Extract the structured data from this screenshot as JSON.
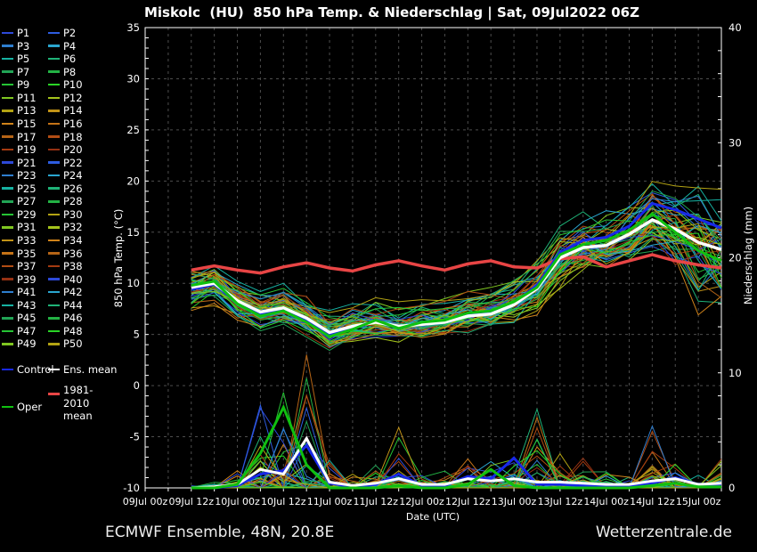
{
  "title": "Miskolc  (HU)  850 hPa Temp. & Niederschlag | Sat, 09Jul2022 06Z",
  "footer": {
    "left": "ECMWF Ensemble, 48N, 20.8E",
    "right": "Wetterzentrale.de"
  },
  "chart": {
    "y_left": {
      "title": "850 hPa Temp. (°C)",
      "ticks": [
        35,
        30,
        25,
        20,
        15,
        10,
        5,
        0,
        -5,
        -10
      ],
      "min": -10,
      "max": 35
    },
    "y_right": {
      "title": "Niederschlag (mm)",
      "ticks": [
        40,
        30,
        20,
        10,
        0
      ],
      "min": 0,
      "max": 40
    },
    "x": {
      "title": "Date (UTC)",
      "tick_labels": [
        "09Jul 00z",
        "09Jul 12z",
        "10Jul 00z",
        "10Jul 12z",
        "11Jul 00z",
        "11Jul 12z",
        "12Jul 00z",
        "12Jul 12z",
        "13Jul 00z",
        "13Jul 12z",
        "14Jul 00z",
        "14Jul 12z",
        "15Jul 00z"
      ]
    }
  },
  "legend": {
    "members": [
      {
        "label": "P1",
        "color": "#2d49d8"
      },
      {
        "label": "P2",
        "color": "#2d5ce0"
      },
      {
        "label": "P3",
        "color": "#2e7ecf"
      },
      {
        "label": "P4",
        "color": "#2aa6cf"
      },
      {
        "label": "P5",
        "color": "#16b2a2"
      },
      {
        "label": "P6",
        "color": "#1fb378"
      },
      {
        "label": "P7",
        "color": "#21a455"
      },
      {
        "label": "P8",
        "color": "#23b244"
      },
      {
        "label": "P9",
        "color": "#25c334"
      },
      {
        "label": "P10",
        "color": "#2ad426"
      },
      {
        "label": "P11",
        "color": "#7fc621"
      },
      {
        "label": "P12",
        "color": "#a4c31c"
      },
      {
        "label": "P13",
        "color": "#b3a313"
      },
      {
        "label": "P14",
        "color": "#c29317"
      },
      {
        "label": "P15",
        "color": "#d0831a"
      },
      {
        "label": "P16",
        "color": "#c57317"
      },
      {
        "label": "P17",
        "color": "#b56416"
      },
      {
        "label": "P18",
        "color": "#b24d14"
      },
      {
        "label": "P19",
        "color": "#a53b11"
      },
      {
        "label": "P20",
        "color": "#953113"
      },
      {
        "label": "P21",
        "color": "#2d49d8"
      },
      {
        "label": "P22",
        "color": "#2d5ce0"
      },
      {
        "label": "P23",
        "color": "#2e7ecf"
      },
      {
        "label": "P24",
        "color": "#2aa6cf"
      },
      {
        "label": "P25",
        "color": "#16b2a2"
      },
      {
        "label": "P26",
        "color": "#1fb378"
      },
      {
        "label": "P27",
        "color": "#21a455"
      },
      {
        "label": "P28",
        "color": "#23b244"
      },
      {
        "label": "P29",
        "color": "#25c334"
      },
      {
        "label": "P30",
        "color": "#b3a313"
      },
      {
        "label": "P31",
        "color": "#7fc621"
      },
      {
        "label": "P32",
        "color": "#a4c31c"
      },
      {
        "label": "P33",
        "color": "#c29317"
      },
      {
        "label": "P34",
        "color": "#d0831a"
      },
      {
        "label": "P35",
        "color": "#c57317"
      },
      {
        "label": "P36",
        "color": "#b56416"
      },
      {
        "label": "P37",
        "color": "#b24d14"
      },
      {
        "label": "P38",
        "color": "#a53b11"
      },
      {
        "label": "P39",
        "color": "#953113"
      },
      {
        "label": "P40",
        "color": "#2d49d8"
      },
      {
        "label": "P41",
        "color": "#2e7ecf"
      },
      {
        "label": "P42",
        "color": "#2aa6cf"
      },
      {
        "label": "P43",
        "color": "#16b2a2"
      },
      {
        "label": "P44",
        "color": "#1fb378"
      },
      {
        "label": "P45",
        "color": "#21a455"
      },
      {
        "label": "P46",
        "color": "#23b244"
      },
      {
        "label": "P47",
        "color": "#25c334"
      },
      {
        "label": "P48",
        "color": "#2ad426"
      },
      {
        "label": "P49",
        "color": "#7fc621"
      },
      {
        "label": "P50",
        "color": "#b3a313"
      }
    ],
    "control": {
      "label": "Control",
      "color": "#1828e8"
    },
    "ens_mean": {
      "label": "Ens. mean",
      "color": "#ffffff"
    },
    "clim": {
      "label_line1": "1981-2010",
      "label_line2": "mean",
      "color": "#e84545"
    },
    "oper": {
      "label": "Oper",
      "color": "#10c010"
    }
  },
  "chart_data": {
    "type": "line",
    "title": "Miskolc (HU) 850 hPa Temp. & Niederschlag | Sat, 09Jul2022 06Z",
    "xlabel": "Date (UTC)",
    "ylabel_left": "850 hPa Temp. (°C)",
    "ylabel_right": "Niederschlag (mm)",
    "ylim_left": [
      -10,
      35
    ],
    "ylim_right": [
      0,
      40
    ],
    "x_axis_span_hours": [
      0,
      150
    ],
    "x_hours_from_start": [
      12,
      18,
      24,
      30,
      36,
      42,
      48,
      54,
      60,
      66,
      72,
      78,
      84,
      90,
      96,
      102,
      108,
      114,
      120,
      126,
      132,
      138,
      144,
      150
    ],
    "series": {
      "clim_mean_temp": [
        11.3,
        11.7,
        11.3,
        11.0,
        11.6,
        12.0,
        11.5,
        11.2,
        11.8,
        12.2,
        11.7,
        11.3,
        11.9,
        12.2,
        11.6,
        11.5,
        12.4,
        12.6,
        11.6,
        12.2,
        12.8,
        12.2,
        11.8,
        11.5
      ],
      "ens_mean_temp": [
        9.6,
        10.0,
        8.3,
        7.2,
        7.6,
        6.6,
        5.2,
        5.8,
        6.2,
        5.8,
        6.0,
        6.2,
        6.8,
        7.0,
        7.9,
        9.5,
        12.5,
        13.5,
        13.7,
        14.8,
        16.2,
        15.3,
        14.0,
        13.3
      ],
      "control_temp": [
        9.4,
        9.9,
        8.1,
        7.0,
        7.5,
        6.4,
        5.0,
        5.7,
        6.3,
        5.7,
        6.1,
        6.3,
        7.0,
        7.2,
        8.1,
        9.8,
        13.0,
        14.2,
        14.5,
        15.6,
        17.8,
        17.2,
        16.3,
        15.4
      ],
      "oper_temp": [
        9.8,
        10.2,
        8.0,
        6.8,
        7.3,
        6.2,
        4.8,
        5.5,
        6.4,
        5.6,
        6.2,
        6.4,
        7.1,
        7.3,
        8.2,
        9.6,
        12.8,
        13.8,
        14.2,
        15.2,
        16.8,
        15.0,
        13.2,
        12.2
      ],
      "ens_mean_precip": [
        0,
        0.1,
        0.3,
        1.6,
        1.2,
        4.3,
        0.5,
        0.2,
        0.4,
        0.8,
        0.3,
        0.3,
        0.8,
        0.6,
        0.8,
        0.5,
        0.5,
        0.4,
        0.3,
        0.3,
        0.6,
        0.8,
        0.3,
        0.4
      ],
      "control_precip": [
        0,
        0,
        0.2,
        1.2,
        1.5,
        3.7,
        0.4,
        0.1,
        0.3,
        1.2,
        0.2,
        0.2,
        1.0,
        0.8,
        2.6,
        0.3,
        0.3,
        0.2,
        0.2,
        0.2,
        0.4,
        0.9,
        0.3,
        0.3
      ],
      "oper_precip": [
        0,
        0,
        0.3,
        3.0,
        7.0,
        2.0,
        0,
        0,
        0,
        0.2,
        0,
        0,
        0.3,
        1.6,
        0.2,
        0,
        0,
        0,
        0,
        0,
        0.2,
        0.4,
        0.1,
        0.1
      ]
    },
    "ensemble_envelope": {
      "temp_min": [
        7.2,
        7.8,
        6.2,
        5.2,
        5.4,
        4.6,
        3.2,
        4.0,
        4.4,
        4.0,
        4.2,
        4.4,
        4.8,
        5.0,
        5.6,
        6.8,
        9.0,
        10.0,
        10.5,
        11.5,
        12.5,
        10.5,
        6.5,
        6.0
      ],
      "temp_max": [
        11.2,
        11.8,
        10.2,
        9.2,
        10.0,
        8.8,
        7.6,
        8.0,
        8.8,
        8.2,
        8.4,
        8.6,
        9.2,
        9.6,
        10.6,
        12.4,
        15.6,
        17.0,
        17.5,
        18.5,
        20.6,
        20.0,
        20.3,
        19.5
      ],
      "precip_max": [
        0.2,
        0.5,
        1.5,
        8.0,
        9.0,
        12.8,
        2.5,
        1.2,
        2.0,
        5.8,
        1.2,
        1.5,
        2.8,
        2.5,
        2.8,
        7.0,
        3.0,
        2.8,
        1.5,
        1.0,
        6.2,
        2.2,
        1.2,
        2.5
      ]
    },
    "n_members": 50
  }
}
